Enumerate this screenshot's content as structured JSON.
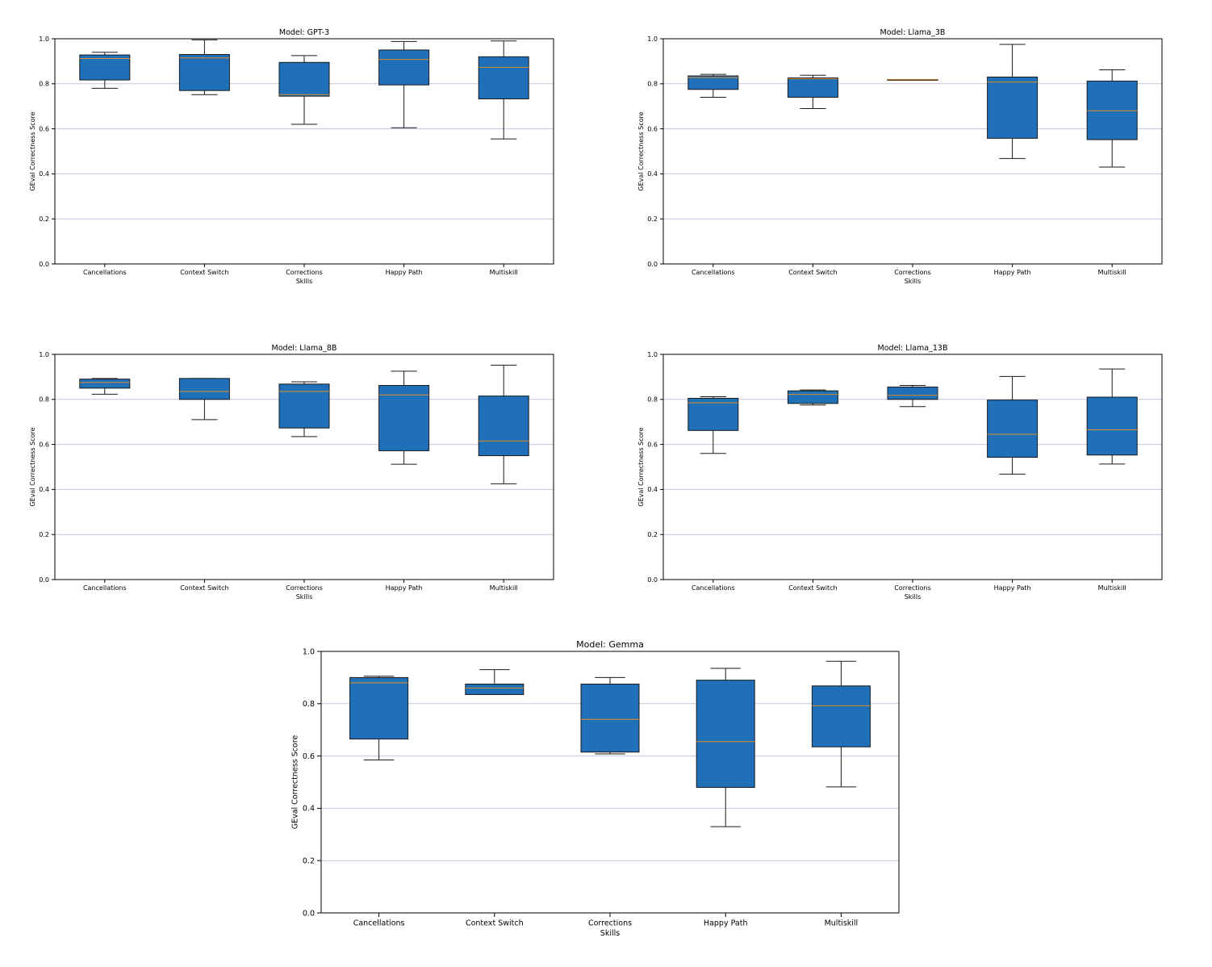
{
  "chart_data": [
    {
      "type": "box",
      "title": "Model: GPT-3",
      "xlabel": "Skills",
      "ylabel": "GEval Correctness Score",
      "ylim": [
        0,
        1
      ],
      "yticks": [
        "0.0",
        "0.2",
        "0.4",
        "0.6",
        "0.8",
        "1.0"
      ],
      "grid": "horizontal",
      "categories": [
        "Cancellations",
        "Context Switch",
        "Corrections",
        "Happy Path",
        "Multiskill"
      ],
      "boxes": [
        {
          "whislo": 0.78,
          "q1": 0.817,
          "med": 0.912,
          "q3": 0.928,
          "whishi": 0.94
        },
        {
          "whislo": 0.752,
          "q1": 0.77,
          "med": 0.915,
          "q3": 0.93,
          "whishi": 0.995
        },
        {
          "whislo": 0.62,
          "q1": 0.745,
          "med": 0.752,
          "q3": 0.895,
          "whishi": 0.925
        },
        {
          "whislo": 0.605,
          "q1": 0.795,
          "med": 0.908,
          "q3": 0.95,
          "whishi": 0.988
        },
        {
          "whislo": 0.555,
          "q1": 0.733,
          "med": 0.873,
          "q3": 0.92,
          "whishi": 0.99
        }
      ]
    },
    {
      "type": "box",
      "title": "Model: Llama_3B",
      "xlabel": "Skills",
      "ylabel": "GEval Correctness Score",
      "ylim": [
        0,
        1
      ],
      "yticks": [
        "0.0",
        "0.2",
        "0.4",
        "0.6",
        "0.8",
        "1.0"
      ],
      "grid": "horizontal",
      "categories": [
        "Cancellations",
        "Context Switch",
        "Corrections",
        "Happy Path",
        "Multiskill"
      ],
      "boxes": [
        {
          "whislo": 0.74,
          "q1": 0.775,
          "med": 0.828,
          "q3": 0.835,
          "whishi": 0.842
        },
        {
          "whislo": 0.69,
          "q1": 0.74,
          "med": 0.822,
          "q3": 0.826,
          "whishi": 0.838
        },
        {
          "whislo": 0.818,
          "q1": 0.818,
          "med": 0.818,
          "q3": 0.819,
          "whishi": 0.819
        },
        {
          "whislo": 0.468,
          "q1": 0.558,
          "med": 0.808,
          "q3": 0.83,
          "whishi": 0.975
        },
        {
          "whislo": 0.43,
          "q1": 0.552,
          "med": 0.68,
          "q3": 0.812,
          "whishi": 0.862
        }
      ]
    },
    {
      "type": "box",
      "title": "Model: Llama_8B",
      "xlabel": "Skills",
      "ylabel": "GEval Correctness Score",
      "ylim": [
        0,
        1
      ],
      "yticks": [
        "0.0",
        "0.2",
        "0.4",
        "0.6",
        "0.8",
        "1.0"
      ],
      "grid": "horizontal",
      "categories": [
        "Cancellations",
        "Context Switch",
        "Corrections",
        "Happy Path",
        "Multiskill"
      ],
      "boxes": [
        {
          "whislo": 0.823,
          "q1": 0.85,
          "med": 0.875,
          "q3": 0.89,
          "whishi": 0.893
        },
        {
          "whislo": 0.71,
          "q1": 0.8,
          "med": 0.835,
          "q3": 0.893,
          "whishi": 0.893
        },
        {
          "whislo": 0.635,
          "q1": 0.673,
          "med": 0.835,
          "q3": 0.868,
          "whishi": 0.878
        },
        {
          "whislo": 0.512,
          "q1": 0.572,
          "med": 0.82,
          "q3": 0.862,
          "whishi": 0.925
        },
        {
          "whislo": 0.425,
          "q1": 0.55,
          "med": 0.615,
          "q3": 0.815,
          "whishi": 0.952
        }
      ]
    },
    {
      "type": "box",
      "title": "Model: Llama_13B",
      "xlabel": "Skills",
      "ylabel": "GEval Correctness Score",
      "ylim": [
        0,
        1
      ],
      "yticks": [
        "0.0",
        "0.2",
        "0.4",
        "0.6",
        "0.8",
        "1.0"
      ],
      "grid": "horizontal",
      "categories": [
        "Cancellations",
        "Context Switch",
        "Corrections",
        "Happy Path",
        "Multiskill"
      ],
      "boxes": [
        {
          "whislo": 0.56,
          "q1": 0.662,
          "med": 0.785,
          "q3": 0.805,
          "whishi": 0.812
        },
        {
          "whislo": 0.775,
          "q1": 0.782,
          "med": 0.822,
          "q3": 0.838,
          "whishi": 0.842
        },
        {
          "whislo": 0.768,
          "q1": 0.8,
          "med": 0.818,
          "q3": 0.855,
          "whishi": 0.862
        },
        {
          "whislo": 0.468,
          "q1": 0.543,
          "med": 0.645,
          "q3": 0.797,
          "whishi": 0.902
        },
        {
          "whislo": 0.513,
          "q1": 0.553,
          "med": 0.665,
          "q3": 0.81,
          "whishi": 0.935
        }
      ]
    },
    {
      "type": "box",
      "title": "Model: Gemma",
      "xlabel": "Skills",
      "ylabel": "GEval Correctness Score",
      "ylim": [
        0,
        1
      ],
      "yticks": [
        "0.0",
        "0.2",
        "0.4",
        "0.6",
        "0.8",
        "1.0"
      ],
      "grid": "horizontal",
      "categories": [
        "Cancellations",
        "Context Switch",
        "Corrections",
        "Happy Path",
        "Multiskill"
      ],
      "boxes": [
        {
          "whislo": 0.585,
          "q1": 0.665,
          "med": 0.88,
          "q3": 0.9,
          "whishi": 0.905
        },
        {
          "whislo": 0.835,
          "q1": 0.835,
          "med": 0.86,
          "q3": 0.875,
          "whishi": 0.93
        },
        {
          "whislo": 0.608,
          "q1": 0.615,
          "med": 0.74,
          "q3": 0.875,
          "whishi": 0.9
        },
        {
          "whislo": 0.33,
          "q1": 0.48,
          "med": 0.655,
          "q3": 0.89,
          "whishi": 0.935
        },
        {
          "whislo": 0.482,
          "q1": 0.635,
          "med": 0.792,
          "q3": 0.868,
          "whishi": 0.962
        }
      ]
    }
  ],
  "colors": {
    "box_fill": "#1f70b8",
    "box_edge": "#1a1a1a",
    "median": "#e08a2b",
    "grid": "#c9c3dc",
    "axis": "#000000"
  }
}
